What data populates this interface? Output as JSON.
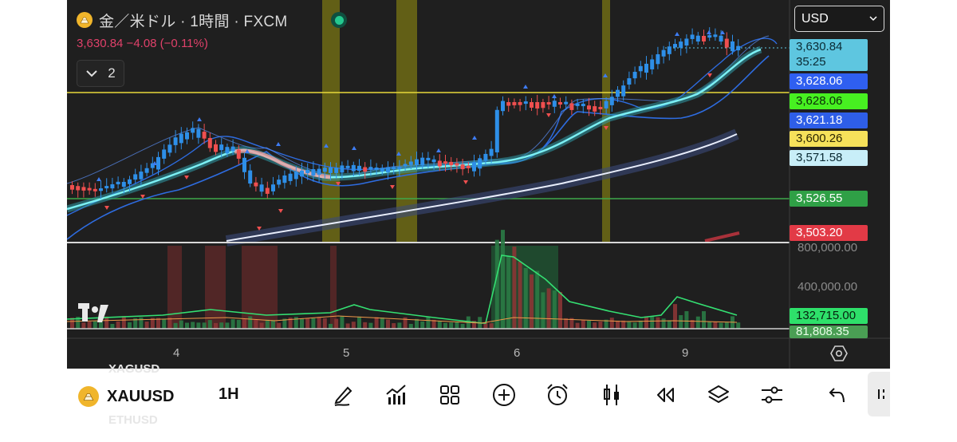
{
  "header": {
    "title": "金／米ドル · 1時間 · FXCM",
    "price_line": "3,630.84  −4.08 (−0.11%)",
    "collapse_count": "2"
  },
  "currency_select": "USD",
  "price_labels": [
    {
      "value": "3,630.84",
      "sub": "35:25",
      "bg": "#5ec6e0",
      "fg": "#0a2a33"
    },
    {
      "value": "3,628.06",
      "bg": "#2f5ff0",
      "fg": "#ffffff"
    },
    {
      "value": "3,628.06",
      "bg": "#47f021",
      "fg": "#0a2a08"
    },
    {
      "value": "3,621.18",
      "bg": "#2e5ee8",
      "fg": "#ffffff"
    },
    {
      "value": "3,600.26",
      "bg": "#f6e15a",
      "fg": "#2a2400"
    },
    {
      "value": "3,571.58",
      "bg": "#c8eef8",
      "fg": "#0a2a33"
    },
    {
      "value": "3,526.55",
      "bg": "#2fa046",
      "fg": "#ffffff"
    },
    {
      "value": "3,503.20",
      "bg": "#e23a46",
      "fg": "#ffffff"
    }
  ],
  "volume_axis": [
    "800,000.00",
    "400,000.00"
  ],
  "volume_labels": [
    {
      "value": "132,715.00",
      "bg": "#2ee06a",
      "fg": "#06210e"
    },
    {
      "value": "81,808.35",
      "bg": "#4a9e54",
      "fg": "#e9ffe9"
    }
  ],
  "time_axis": [
    "4",
    "5",
    "6",
    "9"
  ],
  "toolbar": {
    "symbol": "XAUUSD",
    "interval": "1H",
    "ghost_above": "XAGUSD",
    "ghost_below": "ETHUSD"
  },
  "colors": {
    "bg": "#1f1f1f",
    "bull": "#2e8fe8",
    "bear": "#ef4f4f",
    "yellow_level": "#e8d83a",
    "green_level": "#3ea84a"
  },
  "icons": [
    "gold-coin-icon",
    "chevron-down-icon",
    "tradingview-logo-icon",
    "settings-hexagon-icon",
    "draw-pen-icon",
    "indicators-icon",
    "layout-grid-icon",
    "add-circle-icon",
    "alarm-icon",
    "candles-icon",
    "replay-icon",
    "layers-icon",
    "sliders-icon",
    "undo-icon",
    "more-icon"
  ]
}
